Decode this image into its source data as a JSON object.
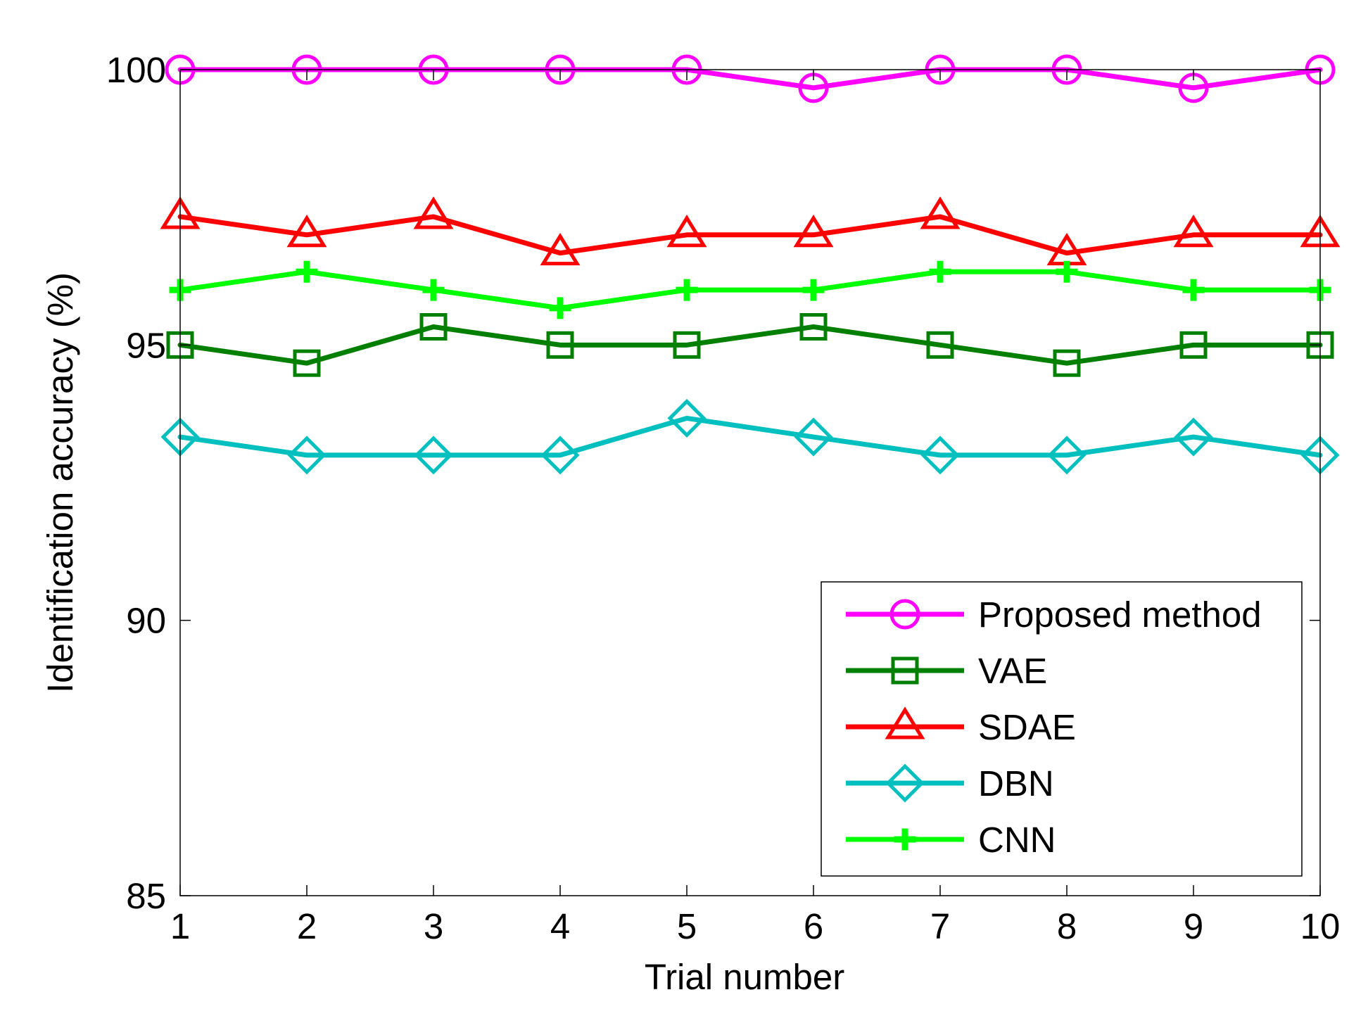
{
  "chart_data": {
    "type": "line",
    "title": "",
    "xlabel": "Trial number",
    "ylabel": "Identification accuracy (%)",
    "x": [
      1,
      2,
      3,
      4,
      5,
      6,
      7,
      8,
      9,
      10
    ],
    "x_ticks": [
      "1",
      "2",
      "3",
      "4",
      "5",
      "6",
      "7",
      "8",
      "9",
      "10"
    ],
    "xlim": [
      1,
      10
    ],
    "ylim": [
      85,
      100
    ],
    "y_ticks": [
      "85",
      "90",
      "95",
      "100"
    ],
    "grid": false,
    "legend_position": "bottom-right",
    "series": [
      {
        "name": "Proposed method",
        "color": "#ff00ff",
        "marker": "circle",
        "values": [
          100,
          100,
          100,
          100,
          100,
          99.67,
          100,
          100,
          99.67,
          100
        ]
      },
      {
        "name": "VAE",
        "color": "#007f00",
        "marker": "square",
        "values": [
          95,
          94.67,
          95.33,
          95,
          95,
          95.33,
          95,
          94.67,
          95,
          95
        ]
      },
      {
        "name": "SDAE",
        "color": "#ff0000",
        "marker": "triangle",
        "values": [
          97.33,
          97,
          97.33,
          96.67,
          97,
          97,
          97.33,
          96.67,
          97,
          97
        ]
      },
      {
        "name": "DBN",
        "color": "#00bfbf",
        "marker": "diamond",
        "values": [
          93.33,
          93,
          93,
          93,
          93.67,
          93.33,
          93,
          93,
          93.33,
          93
        ]
      },
      {
        "name": "CNN",
        "color": "#00ff00",
        "marker": "star",
        "values": [
          96,
          96.33,
          96,
          95.67,
          96,
          96,
          96.33,
          96.33,
          96,
          96
        ]
      }
    ]
  }
}
